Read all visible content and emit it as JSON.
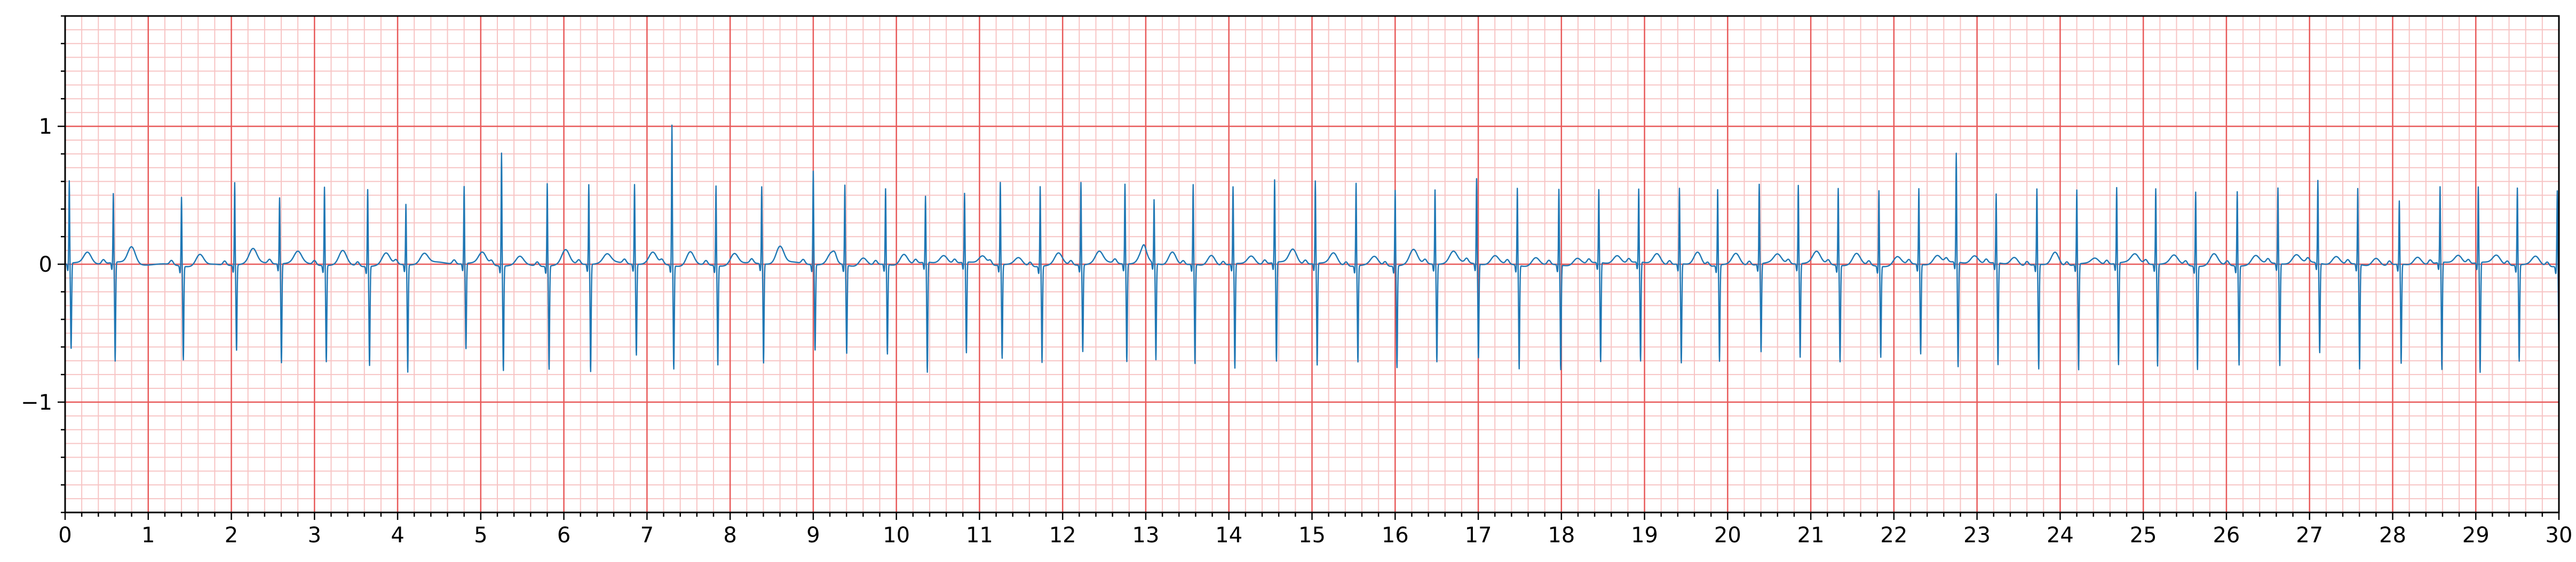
{
  "chart_data": {
    "type": "line",
    "title": "",
    "xlabel": "",
    "ylabel": "",
    "xlim": [
      0,
      30
    ],
    "ylim": [
      -1.8,
      1.8
    ],
    "x_ticks": [
      0,
      1,
      2,
      3,
      4,
      5,
      6,
      7,
      8,
      9,
      10,
      11,
      12,
      13,
      14,
      15,
      16,
      17,
      18,
      19,
      20,
      21,
      22,
      23,
      24,
      25,
      26,
      27,
      28,
      29,
      30
    ],
    "x_tick_labels": [
      "0",
      "1",
      "2",
      "3",
      "4",
      "5",
      "6",
      "7",
      "8",
      "9",
      "10",
      "11",
      "12",
      "13",
      "14",
      "15",
      "16",
      "17",
      "18",
      "19",
      "20",
      "21",
      "22",
      "23",
      "24",
      "25",
      "26",
      "27",
      "28",
      "29",
      "30"
    ],
    "y_ticks": [
      -1,
      0,
      1
    ],
    "y_tick_labels": [
      "−1",
      "0",
      "1"
    ],
    "grid": {
      "major_x_step": 1,
      "minor_x_step": 0.2,
      "major_y_step": 1,
      "minor_y_step": 0.1,
      "major_color": "#e85a5a",
      "minor_color": "#f7c4c4"
    },
    "colors": {
      "trace": "#1f77b4",
      "axis": "#000000",
      "background": "#ffffff"
    },
    "series": [
      {
        "beat_times": [
          0.05,
          0.58,
          1.4,
          2.04,
          2.58,
          3.12,
          3.64,
          4.1,
          4.8,
          5.25,
          5.8,
          6.3,
          6.85,
          7.3,
          7.83,
          8.38,
          9.0,
          9.38,
          9.87,
          10.35,
          10.82,
          11.25,
          11.73,
          12.22,
          12.75,
          13.1,
          13.57,
          14.05,
          14.55,
          15.04,
          15.53,
          16.0,
          16.48,
          16.98,
          17.47,
          17.97,
          18.45,
          18.93,
          19.42,
          19.88,
          20.38,
          20.85,
          21.33,
          21.82,
          22.3,
          22.75,
          23.23,
          23.72,
          24.2,
          24.68,
          25.15,
          25.63,
          26.13,
          26.62,
          27.1,
          27.58,
          28.08,
          28.57,
          29.03,
          29.5,
          29.98
        ],
        "r_amplitudes": [
          0.6,
          0.5,
          0.5,
          0.6,
          0.48,
          0.57,
          0.56,
          0.44,
          0.56,
          0.82,
          0.6,
          0.58,
          0.58,
          1.02,
          0.58,
          0.56,
          0.68,
          0.58,
          0.55,
          0.48,
          0.5,
          0.6,
          0.58,
          0.6,
          0.58,
          0.46,
          0.58,
          0.56,
          0.6,
          0.6,
          0.6,
          0.55,
          0.54,
          0.62,
          0.56,
          0.55,
          0.53,
          0.53,
          0.55,
          0.55,
          0.58,
          0.57,
          0.56,
          0.55,
          0.55,
          0.79,
          0.5,
          0.55,
          0.54,
          0.55,
          0.55,
          0.54,
          0.54,
          0.55,
          0.6,
          0.55,
          0.46,
          0.55,
          0.55,
          0.56,
          0.55
        ],
        "s_depths": [
          -0.62,
          -0.72,
          -0.68,
          -0.62,
          -0.72,
          -0.7,
          -0.72,
          -0.78,
          -0.62,
          -0.76,
          -0.75,
          -0.78,
          -0.66,
          -0.75,
          -0.72,
          -0.72,
          -0.62,
          -0.64,
          -0.65,
          -0.8,
          -0.66,
          -0.68,
          -0.7,
          -0.63,
          -0.71,
          -0.7,
          -0.72,
          -0.76,
          -0.72,
          -0.74,
          -0.7,
          -0.74,
          -0.71,
          -0.68,
          -0.75,
          -0.76,
          -0.72,
          -0.72,
          -0.72,
          -0.7,
          -0.64,
          -0.68,
          -0.7,
          -0.66,
          -0.65,
          -0.76,
          -0.74,
          -0.76,
          -0.77,
          -0.74,
          -0.74,
          -0.75,
          -0.72,
          -0.74,
          -0.65,
          -0.76,
          -0.72,
          -0.78,
          -0.8,
          -0.7,
          -0.72
        ],
        "t_amplitudes": [
          0.08,
          0.12,
          0.08,
          0.1,
          0.08,
          0.1,
          0.08,
          0.07,
          0.08,
          0.06,
          0.1,
          0.06,
          0.08,
          0.1,
          0.08,
          0.12,
          0.08,
          0.06,
          0.08,
          0.06,
          0.06,
          0.05,
          0.08,
          0.08,
          0.1,
          0.1,
          0.08,
          0.06,
          0.1,
          0.08,
          0.06,
          0.1,
          0.08,
          0.06,
          0.06,
          0.05,
          0.06,
          0.08,
          0.1,
          0.08,
          0.06,
          0.08,
          0.08,
          0.06,
          0.06,
          0.06,
          0.06,
          0.1,
          0.04,
          0.06,
          0.06,
          0.08,
          0.06,
          0.06,
          0.06,
          0.06,
          0.06,
          0.06,
          0.06,
          0.06,
          0.06
        ]
      }
    ]
  }
}
